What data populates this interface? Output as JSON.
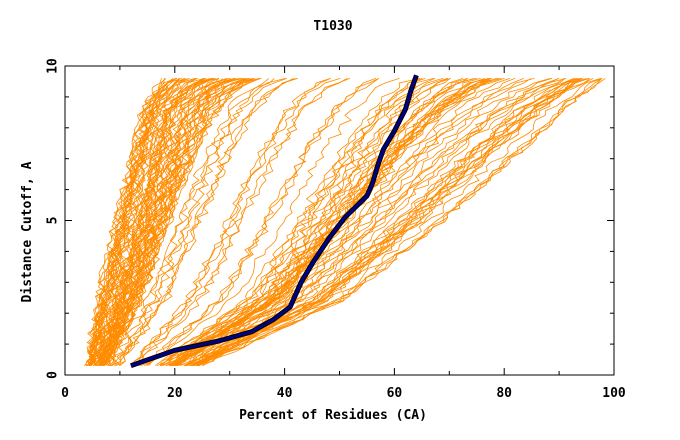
{
  "chart_data": {
    "type": "line",
    "title": "T1030",
    "xlabel": "Percent of Residues (CA)",
    "ylabel": "Distance Cutoff, A",
    "xlim": [
      0,
      100
    ],
    "ylim": [
      0,
      10
    ],
    "x_ticks": [
      "0",
      "20",
      "40",
      "60",
      "80",
      "100"
    ],
    "y_ticks": [
      "0",
      "5",
      "10"
    ],
    "grid": false,
    "legend": "none",
    "colors": {
      "models": "#ff8c00",
      "highlight": "#000080",
      "highlight_outline": "#000000"
    },
    "highlight_series": {
      "x": [
        12,
        20,
        28,
        34,
        38,
        41,
        42,
        43,
        45,
        48,
        51,
        55,
        56,
        57,
        58,
        60,
        62,
        63,
        64
      ],
      "y": [
        0.3,
        0.8,
        1.1,
        1.4,
        1.8,
        2.2,
        2.6,
        3.0,
        3.6,
        4.4,
        5.1,
        5.8,
        6.2,
        6.8,
        7.3,
        7.9,
        8.6,
        9.2,
        9.7
      ]
    },
    "model_series_bundles": [
      {
        "x": [
          4,
          6,
          9,
          12,
          14,
          16,
          17,
          18
        ],
        "y": [
          0.3,
          2.5,
          5.0,
          7.2,
          8.6,
          9.2,
          9.5,
          9.6
        ]
      },
      {
        "x": [
          6,
          10,
          14,
          17,
          19,
          22,
          24,
          26
        ],
        "y": [
          0.3,
          2.5,
          5.0,
          7.2,
          8.6,
          9.2,
          9.5,
          9.6
        ]
      },
      {
        "x": [
          8,
          14,
          19,
          24,
          28,
          31,
          34,
          36
        ],
        "y": [
          0.3,
          2.5,
          5.0,
          7.2,
          8.6,
          9.2,
          9.5,
          9.6
        ]
      },
      {
        "x": [
          18,
          36,
          46,
          54,
          60,
          64,
          66,
          68
        ],
        "y": [
          0.3,
          2.5,
          5.0,
          7.2,
          8.6,
          9.2,
          9.5,
          9.6
        ]
      },
      {
        "x": [
          22,
          42,
          56,
          68,
          78,
          84,
          88,
          90
        ],
        "y": [
          0.3,
          2.5,
          5.0,
          7.2,
          8.6,
          9.2,
          9.5,
          9.6
        ]
      },
      {
        "x": [
          25,
          52,
          70,
          84,
          92,
          96,
          98,
          99
        ],
        "y": [
          0.3,
          2.5,
          5.0,
          7.2,
          8.6,
          9.2,
          9.5,
          9.6
        ]
      }
    ]
  }
}
